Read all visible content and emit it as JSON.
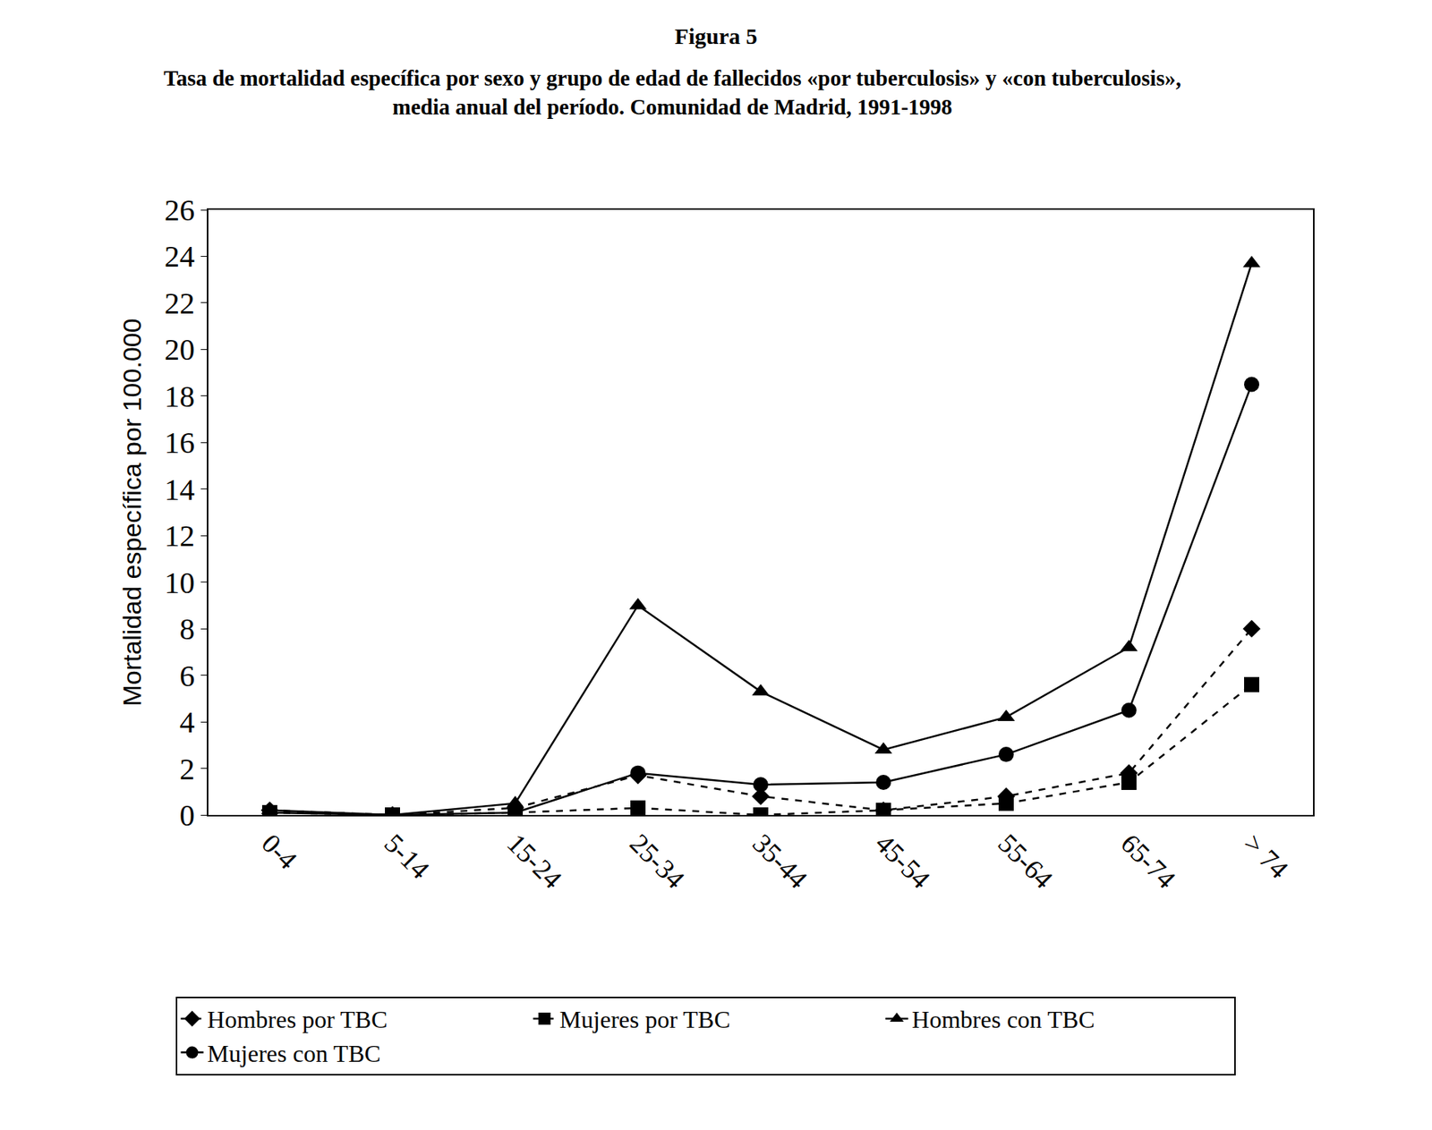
{
  "chart_data": {
    "type": "line",
    "title": "Figura 5",
    "subtitle": [
      "Tasa de mortalidad específica por sexo y grupo de edad de fallecidos «por tuberculosis» y «con tuberculosis»,",
      "media anual del período. Comunidad de Madrid, 1991-1998"
    ],
    "y_label": "Mortalidad específica por 100.000",
    "categories": [
      "0-4",
      "5-14",
      "15-24",
      "25-34",
      "35-44",
      "45-54",
      "55-64",
      "65-74",
      "> 74"
    ],
    "series": [
      {
        "name": "Hombres por TBC",
        "color": "#000000",
        "marker": "diamond",
        "line_style": "dash",
        "values": [
          0.2,
          0,
          0.3,
          1.7,
          0.8,
          0.2,
          0.8,
          1.8,
          8.0
        ]
      },
      {
        "name": "Mujeres por TBC",
        "color": "#000000",
        "marker": "square",
        "line_style": "dash",
        "values": [
          0.1,
          0,
          0.1,
          0.3,
          0,
          0.2,
          0.5,
          1.4,
          5.6
        ]
      },
      {
        "name": "Hombres con TBC",
        "color": "#000000",
        "marker": "triangle-up",
        "line_style": "solid",
        "values": [
          0.2,
          0,
          0.5,
          9.0,
          5.3,
          2.8,
          4.2,
          7.2,
          23.7
        ]
      },
      {
        "name": "Mujeres con TBC",
        "color": "#000000",
        "marker": "circle",
        "line_style": "solid",
        "values": [
          0.1,
          0,
          0.1,
          1.8,
          1.3,
          1.4,
          2.6,
          4.5,
          18.5
        ]
      }
    ],
    "ylim": [
      0,
      26
    ],
    "yticks": [
      0,
      2,
      4,
      6,
      8,
      10,
      12,
      14,
      16,
      18,
      20,
      22,
      24,
      26
    ],
    "grid": false,
    "legend": "bottom"
  }
}
